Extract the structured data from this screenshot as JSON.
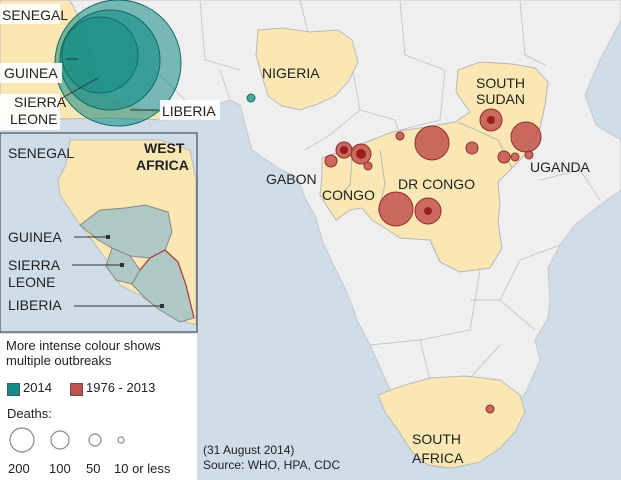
{
  "labels": {
    "senegal_top": "SENEGAL",
    "guinea_top": "GUINEA",
    "sierra_top": [
      "SIERRA",
      "LEONE"
    ],
    "liberia_top": "LIBERIA",
    "nigeria": "NIGERIA",
    "south_sudan": [
      "SOUTH",
      "SUDAN"
    ],
    "uganda": "UGANDA",
    "gabon": "GABON",
    "congo": "CONGO",
    "dr_congo": "DR CONGO",
    "south_africa": [
      "SOUTH",
      "AFRICA"
    ]
  },
  "inset": {
    "title": [
      "WEST",
      "AFRICA"
    ],
    "senegal": "SENEGAL",
    "guinea": "GUINEA",
    "sierra": [
      "SIERRA",
      "LEONE"
    ],
    "liberia": "LIBERIA"
  },
  "legend": {
    "note": "More intense colour shows multiple outbreaks",
    "series": [
      {
        "label": "2014",
        "color": "#138a84"
      },
      {
        "label": "1976 - 2013",
        "color": "#c1524d"
      }
    ],
    "deaths_title": "Deaths:",
    "sizes": [
      {
        "label": "200",
        "deaths": 200
      },
      {
        "label": "100",
        "deaths": 100
      },
      {
        "label": "50",
        "deaths": 50
      },
      {
        "label": "10 or less",
        "deaths": 10
      }
    ]
  },
  "source": {
    "date": "(31 August 2014)",
    "text": "Source: WHO, HPA, CDC"
  },
  "colors": {
    "sea": "#cfdde9",
    "land": "#efefef",
    "affected": "#fae7b4",
    "outbreak_2014": "#138a84",
    "outbreak_past": "#c1524d"
  }
}
